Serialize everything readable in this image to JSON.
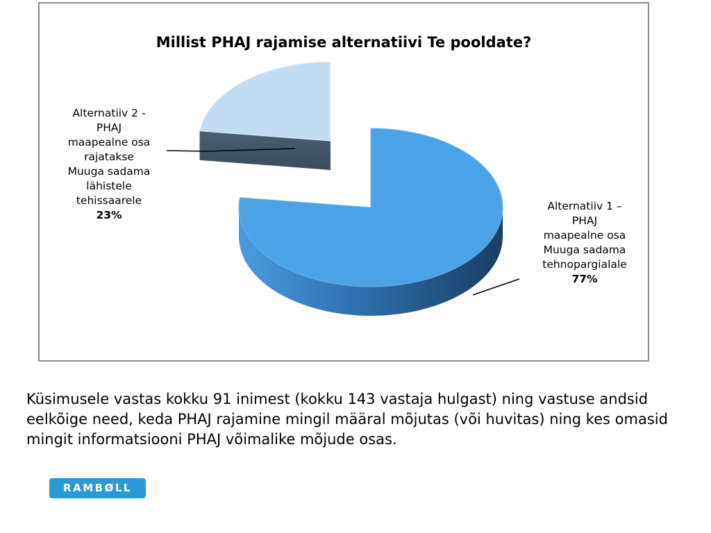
{
  "chart_data": {
    "type": "pie",
    "title": "Millist PHAJ rajamise alternatiivi Te pooldate?",
    "slices": [
      {
        "label": "Alternatiiv 1 –\nPHAJ\nmaapealne osa\nMuuga sadama\ntehnopargialale",
        "value": 77,
        "value_label": "77%",
        "color": "#4aa3e6"
      },
      {
        "label": "Alternatiiv 2 -\nPHAJ\nmaapealne osa\nrajatakse\nMuuga sadama\nlähistele\ntehissaarele",
        "value": 23,
        "value_label": "23%",
        "color": "#c2dcf3"
      }
    ],
    "style": "3d-exploded"
  },
  "caption": "Küsimusele vastas kokku 91 inimest (kokku 143 vastaja hulgast) ning vastuse andsid eelkõige need, keda PHAJ rajamine mingil määral mõjutas (või huvitas) ning kes omasid mingit informatsiooni PHAJ võimalike mõjude osas.",
  "logo_text": "RAMBØLL"
}
